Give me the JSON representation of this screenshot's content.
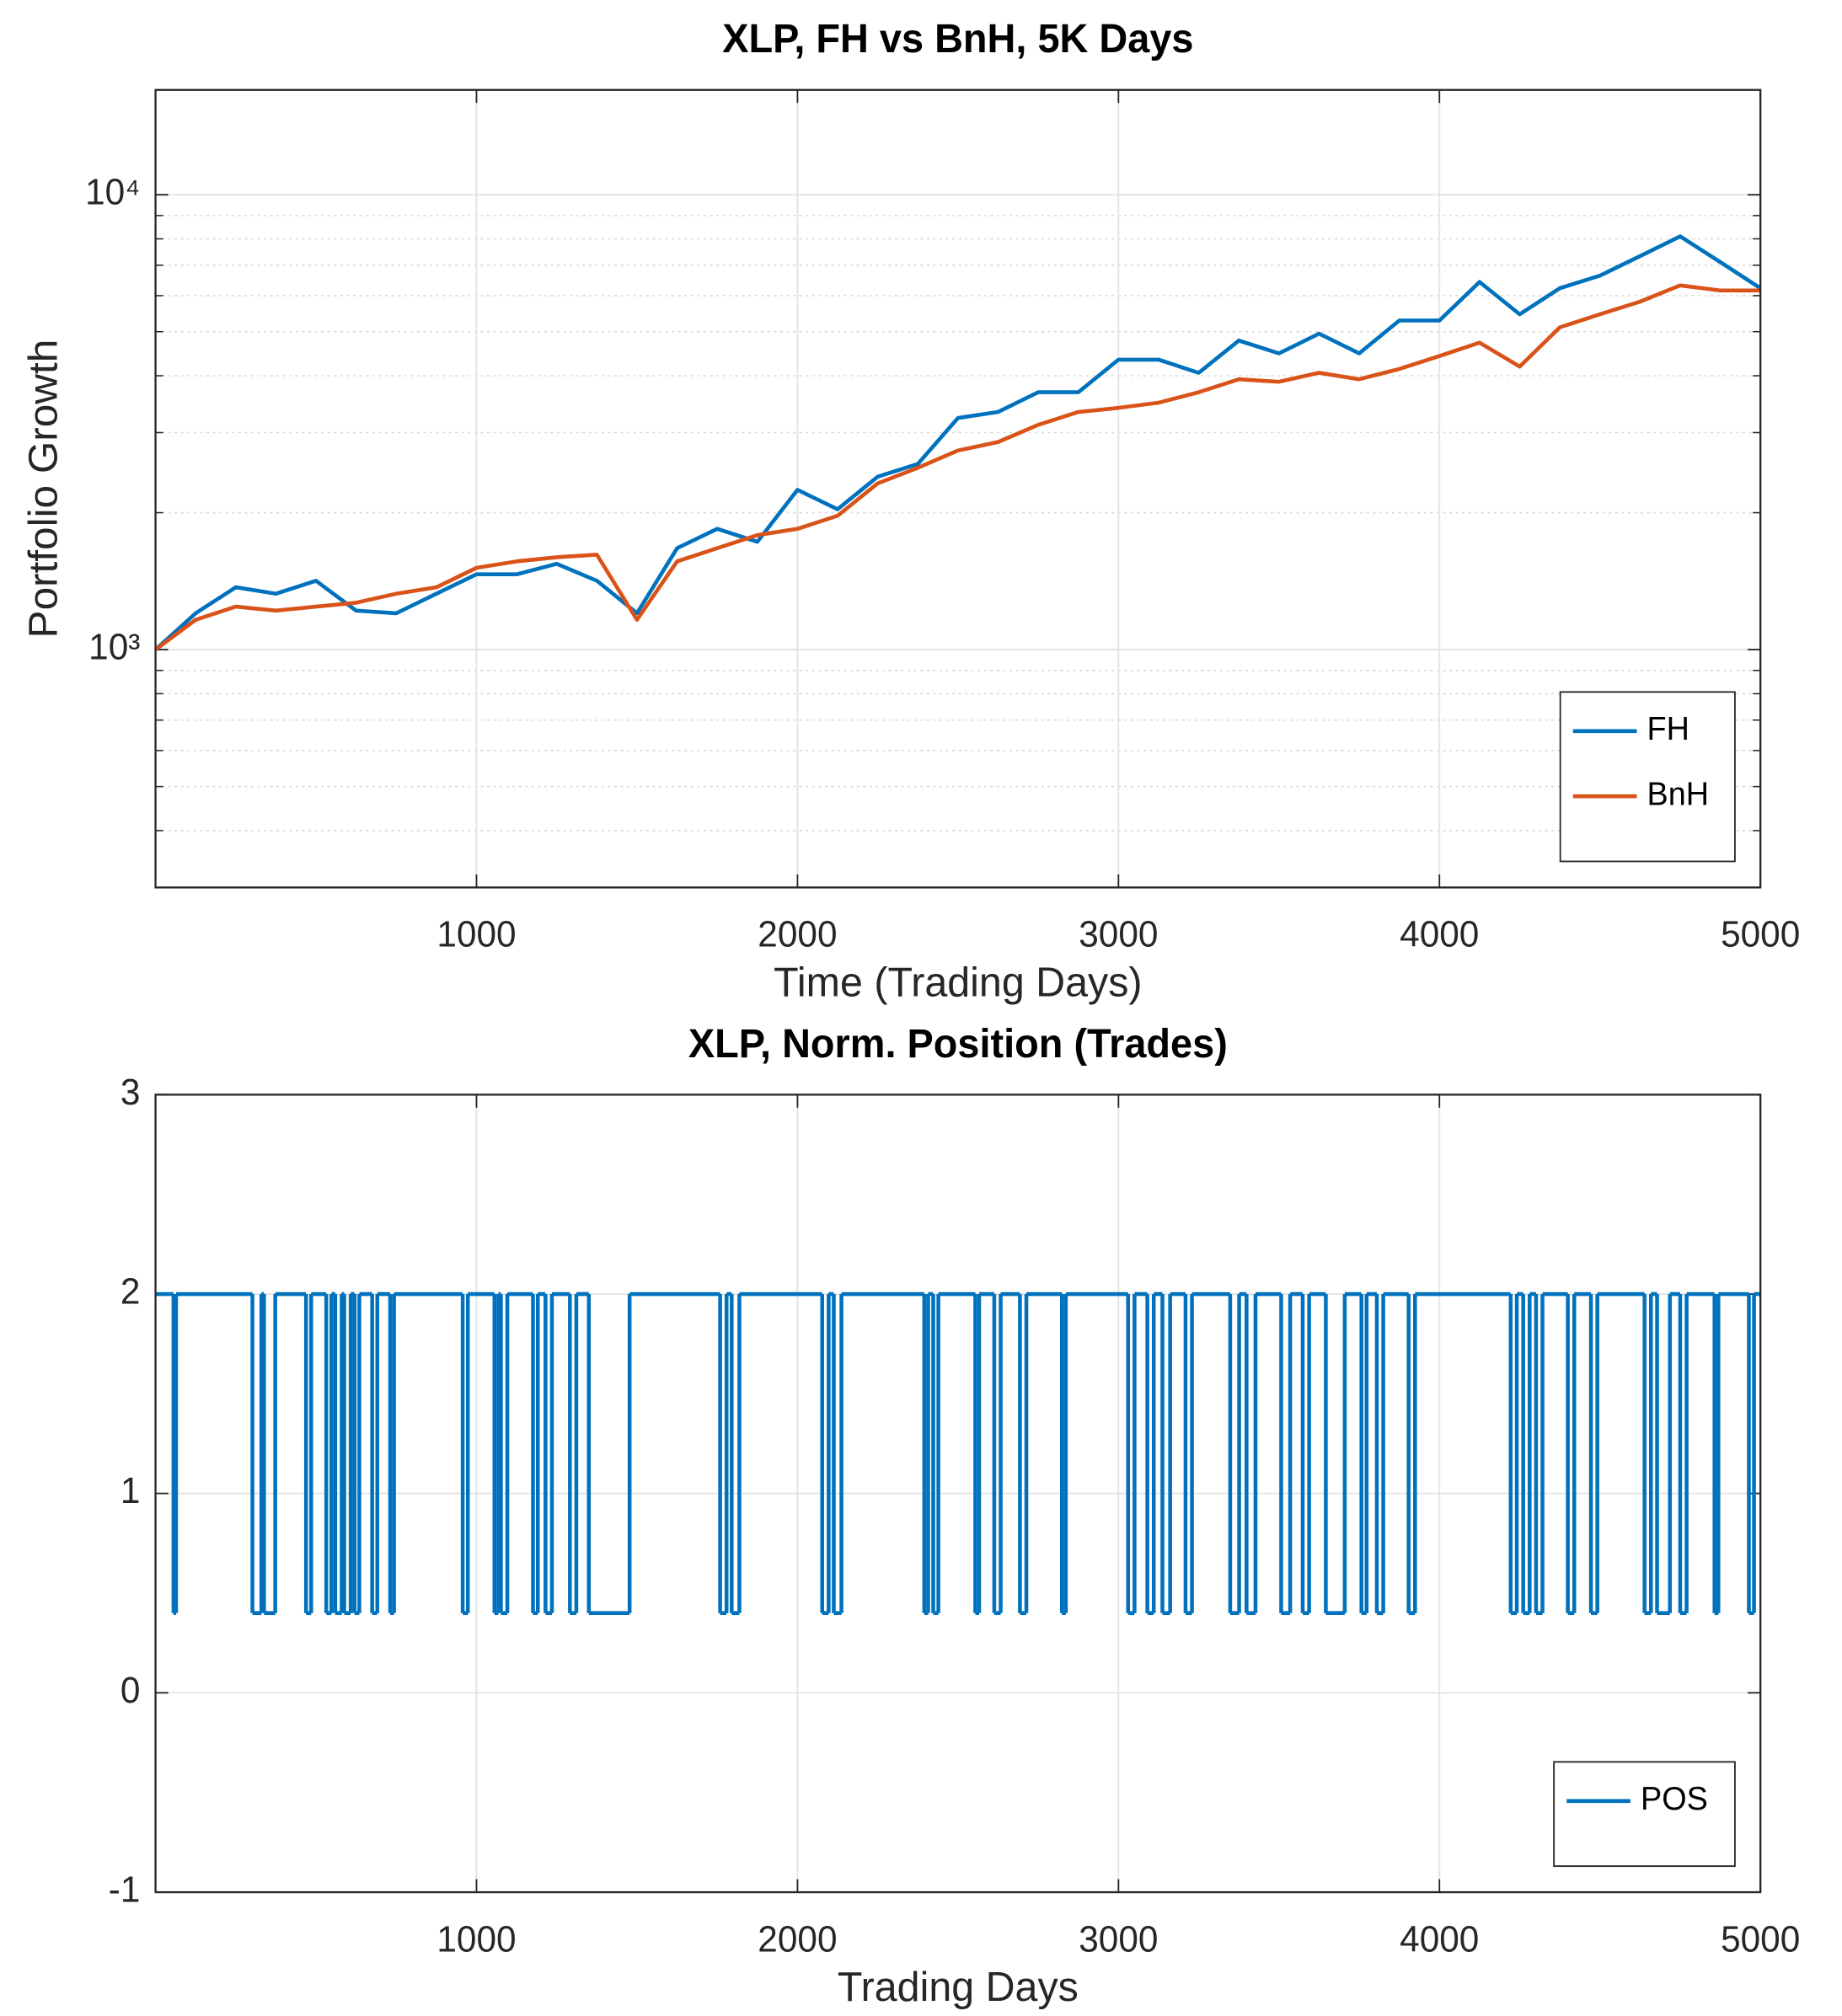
{
  "chart_data": [
    {
      "type": "line",
      "title": "XLP, FH vs BnH, 5K Days",
      "x_label": "Time (Trading Days)",
      "y_label": "Portfolio Growth",
      "x": [
        0,
        125,
        250,
        375,
        500,
        625,
        750,
        875,
        1000,
        1125,
        1250,
        1375,
        1500,
        1625,
        1750,
        1875,
        2000,
        2125,
        2250,
        2375,
        2500,
        2625,
        2750,
        2875,
        3000,
        3125,
        3250,
        3375,
        3500,
        3625,
        3750,
        3875,
        4000,
        4125,
        4250,
        4375,
        4500,
        4625,
        4750,
        4875,
        5000
      ],
      "series": [
        {
          "name": "FH",
          "color": "#0072bd",
          "values": [
            1000,
            1202,
            1371,
            1327,
            1417,
            1218,
            1202,
            1327,
            1464,
            1464,
            1544,
            1417,
            1202,
            1671,
            1843,
            1726,
            2245,
            2035,
            2400,
            2560,
            3230,
            3330,
            3680,
            3680,
            4340,
            4340,
            4060,
            4780,
            4480,
            4950,
            4480,
            5290,
            5290,
            6430,
            5460,
            6230,
            6640,
            7330,
            8100,
            7110,
            6230
          ]
        },
        {
          "name": "BnH",
          "color": "#d95319",
          "values": [
            1000,
            1163,
            1243,
            1218,
            1243,
            1268,
            1327,
            1371,
            1513,
            1563,
            1596,
            1617,
            1163,
            1563,
            1671,
            1785,
            1843,
            1969,
            2320,
            2510,
            2740,
            2860,
            3120,
            3330,
            3400,
            3490,
            3680,
            3930,
            3880,
            4060,
            3930,
            4140,
            4420,
            4730,
            4190,
            5110,
            5460,
            5820,
            6320,
            6160,
            6160
          ]
        }
      ],
      "xlim": [
        0,
        5000
      ],
      "xticks": [
        1000,
        2000,
        3000,
        4000,
        5000
      ],
      "ylim": [
        300,
        17000
      ],
      "yticks": [
        {
          "value": 1000,
          "label": "10³"
        },
        {
          "value": 10000,
          "label": "10⁴"
        }
      ],
      "log_y": true,
      "grid": true,
      "minor_grid": true,
      "legend": "lower right"
    },
    {
      "type": "line",
      "title": "XLP, Norm. Position (Trades)",
      "x_label": "Trading Days",
      "drawstyle": "steps-post",
      "x": [
        1,
        56,
        64,
        302,
        330,
        338,
        373,
        469,
        485,
        532,
        548,
        560,
        580,
        588,
        608,
        620,
        635,
        675,
        691,
        731,
        743,
        957,
        973,
        1056,
        1068,
        1076,
        1096,
        1176,
        1191,
        1215,
        1235,
        1291,
        1311,
        1350,
        1477,
        1759,
        1779,
        1795,
        1819,
        2077,
        2097,
        2113,
        2137,
        2395,
        2407,
        2423,
        2439,
        2554,
        2566,
        2613,
        2633,
        2693,
        2713,
        2824,
        2836,
        3030,
        3050,
        3090,
        3110,
        3137,
        3161,
        3209,
        3229,
        3348,
        3376,
        3399,
        3427,
        3507,
        3535,
        3574,
        3594,
        3646,
        3705,
        3757,
        3773,
        3805,
        3825,
        3904,
        3924,
        4222,
        4241,
        4261,
        4281,
        4301,
        4321,
        4400,
        4420,
        4472,
        4492,
        4639,
        4659,
        4678,
        4718,
        4750,
        4770,
        4857,
        4869,
        4964,
        4980,
        5000
      ],
      "series": [
        {
          "name": "POS",
          "color": "#0072bd",
          "values": [
            2,
            0.4,
            2,
            0.4,
            2,
            0.4,
            2,
            0.4,
            2,
            0.4,
            2,
            0.4,
            2,
            0.4,
            2,
            0.4,
            2,
            0.4,
            2,
            0.4,
            2,
            0.4,
            2,
            0.4,
            2,
            0.4,
            2,
            0.4,
            2,
            0.4,
            2,
            0.4,
            2,
            0.4,
            2,
            0.4,
            2,
            0.4,
            2,
            0.4,
            2,
            0.4,
            2,
            0.4,
            2,
            0.4,
            2,
            0.4,
            2,
            0.4,
            2,
            0.4,
            2,
            0.4,
            2,
            0.4,
            2,
            0.4,
            2,
            0.4,
            2,
            0.4,
            2,
            0.4,
            2,
            0.4,
            2,
            0.4,
            2,
            0.4,
            2,
            0.4,
            2,
            0.4,
            2,
            0.4,
            2,
            0.4,
            2,
            0.4,
            2,
            0.4,
            2,
            0.4,
            2,
            0.4,
            2,
            0.4,
            2,
            0.4,
            2,
            0.4,
            2,
            0.4,
            2,
            0.4,
            2,
            0.4,
            2,
            2
          ]
        }
      ],
      "xlim": [
        0,
        5000
      ],
      "xticks": [
        1000,
        2000,
        3000,
        4000,
        5000
      ],
      "ylim": [
        -1,
        3
      ],
      "yticks": [
        -1,
        0,
        1,
        2,
        3
      ],
      "grid": true,
      "legend": "lower right"
    }
  ]
}
